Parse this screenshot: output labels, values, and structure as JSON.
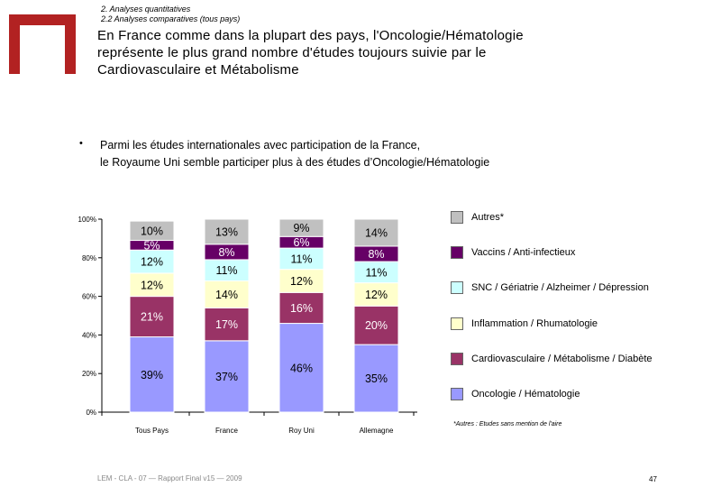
{
  "header": {
    "breadcrumb_1": "2. Analyses quantitatives",
    "breadcrumb_2": "2.2 Analyses comparatives (tous pays)",
    "title_line_1": "En France comme dans la plupart des pays, l'Oncologie/Hématologie",
    "title_line_2": "représente le plus grand nombre d'études toujours suivie par le",
    "title_line_3": "Cardiovasculaire et Métabolisme"
  },
  "intro": {
    "bullet": "•",
    "line_1": "Parmi les études internationales avec participation de la France,",
    "line_2": "le Royaume Uni semble participer plus à des études d’Oncologie/Hématologie"
  },
  "chart_data": {
    "type": "bar",
    "stacked": true,
    "normalized": true,
    "categories": [
      "Tous Pays",
      "France",
      "Roy Uni",
      "Allemagne"
    ],
    "series": [
      {
        "name": "Oncologie / Hématologie",
        "values": [
          39,
          37,
          46,
          35
        ],
        "labels": [
          "39%",
          "37%",
          "46%",
          "35%"
        ],
        "color": "#9999ff"
      },
      {
        "name": "Cardiovasculaire / Métabolisme / Diabète",
        "values": [
          21,
          17,
          16,
          20
        ],
        "labels": [
          "21%",
          "17%",
          "16%",
          "20%"
        ],
        "color": "#993366"
      },
      {
        "name": "Inflammation / Rhumatologie",
        "values": [
          12,
          14,
          12,
          12
        ],
        "labels": [
          "12%",
          "14%",
          "12%",
          "12%"
        ],
        "color": "#ffffcc"
      },
      {
        "name": "SNC / Gériatrie / Alzheimer / Dépression",
        "values": [
          12,
          11,
          11,
          11
        ],
        "labels": [
          "12%",
          "11%",
          "11%",
          "11%"
        ],
        "color": "#ccffff"
      },
      {
        "name": "Vaccins / Anti-infectieux",
        "values": [
          5,
          8,
          6,
          8
        ],
        "labels": [
          "5%",
          "8%",
          "6%",
          "8%"
        ],
        "color": "#660066"
      },
      {
        "name": "Autres*",
        "values": [
          10,
          13,
          9,
          14
        ],
        "labels": [
          "10%",
          "13%",
          "9%",
          "14%"
        ],
        "color": "#c0c0c0"
      }
    ],
    "y_ticks": [
      "0%",
      "20%",
      "40%",
      "60%",
      "80%",
      "100%"
    ],
    "ylim": [
      0,
      100
    ],
    "legend_order": [
      "Autres*",
      "Vaccins / Anti-infectieux",
      "SNC / Gériatrie / Alzheimer / Dépression",
      "Inflammation / Rhumatologie",
      "Cardiovasculaire / Métabolisme / Diabète",
      "Oncologie / Hématologie"
    ],
    "legend_position": "right",
    "footnote": "*Autres : Etudes sans mention de l'aire"
  },
  "footer": {
    "text": "LEM - CLA - 07 — Rapport Final v15 — 2009",
    "page_number": "47"
  },
  "colors": {
    "logo": "#b22222"
  }
}
